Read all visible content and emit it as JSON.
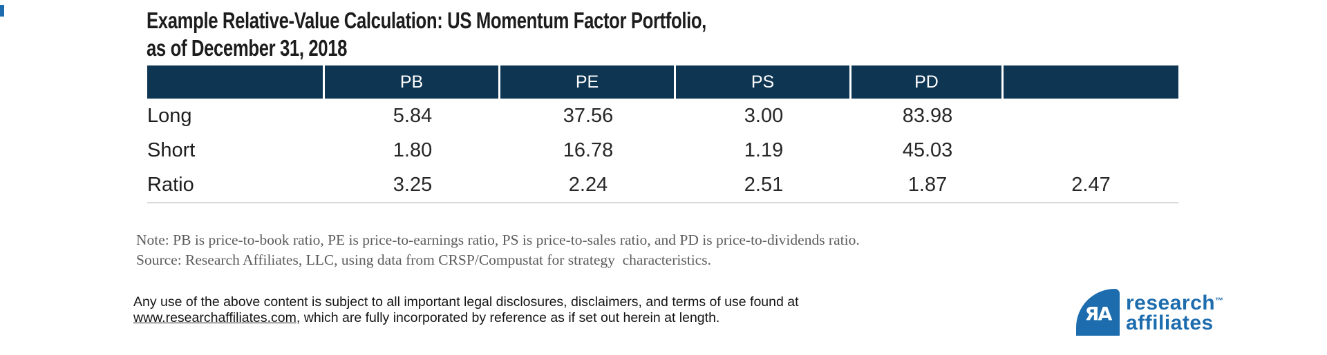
{
  "title": {
    "line1": "Example Relative-Value Calculation: US Momentum Factor Portfolio,",
    "line2": "as of December 31, 2018"
  },
  "chart_data": {
    "type": "table",
    "title": "Example Relative-Value Calculation: US Momentum Factor Portfolio, as of December 31, 2018",
    "columns": [
      "",
      "PB",
      "PE",
      "PS",
      "PD",
      ""
    ],
    "rows": [
      [
        "Long",
        "5.84",
        "37.56",
        "3.00",
        "83.98",
        ""
      ],
      [
        "Short",
        "1.80",
        "16.78",
        "1.19",
        "45.03",
        ""
      ],
      [
        "Ratio",
        "3.25",
        "2.24",
        "2.51",
        "1.87",
        "2.47"
      ]
    ],
    "layout_hints": {
      "header_background": "#0e3552",
      "header_text": "#ffffff",
      "bottom_rule": "#d9d9d9"
    }
  },
  "notes": {
    "note": "Note: PB is price-to-book ratio, PE is price-to-earnings ratio, PS is price-to-sales ratio, and PD is price-to-dividends ratio.",
    "source": "Source: Research Affiliates, LLC, using data from CRSP/Compustat for strategy  characteristics."
  },
  "legal": {
    "line1": "Any use of the above content is subject to all important legal disclosures, disclaimers, and terms of use found at",
    "link": "www.researchaffiliates.com",
    "line2_rest": ", which are fully incorporated by reference as if set out herein at length."
  },
  "logo": {
    "monogram": "ЯA",
    "name_line1": "research",
    "trademark": "™",
    "name_line2": "affiliates"
  },
  "colors": {
    "header_navy": "#0e3552",
    "logo_blue": "#1c6cae",
    "rule_gray": "#d9d9d9",
    "note_gray": "#5c5c5c",
    "text_dark": "#1d1d1d"
  }
}
